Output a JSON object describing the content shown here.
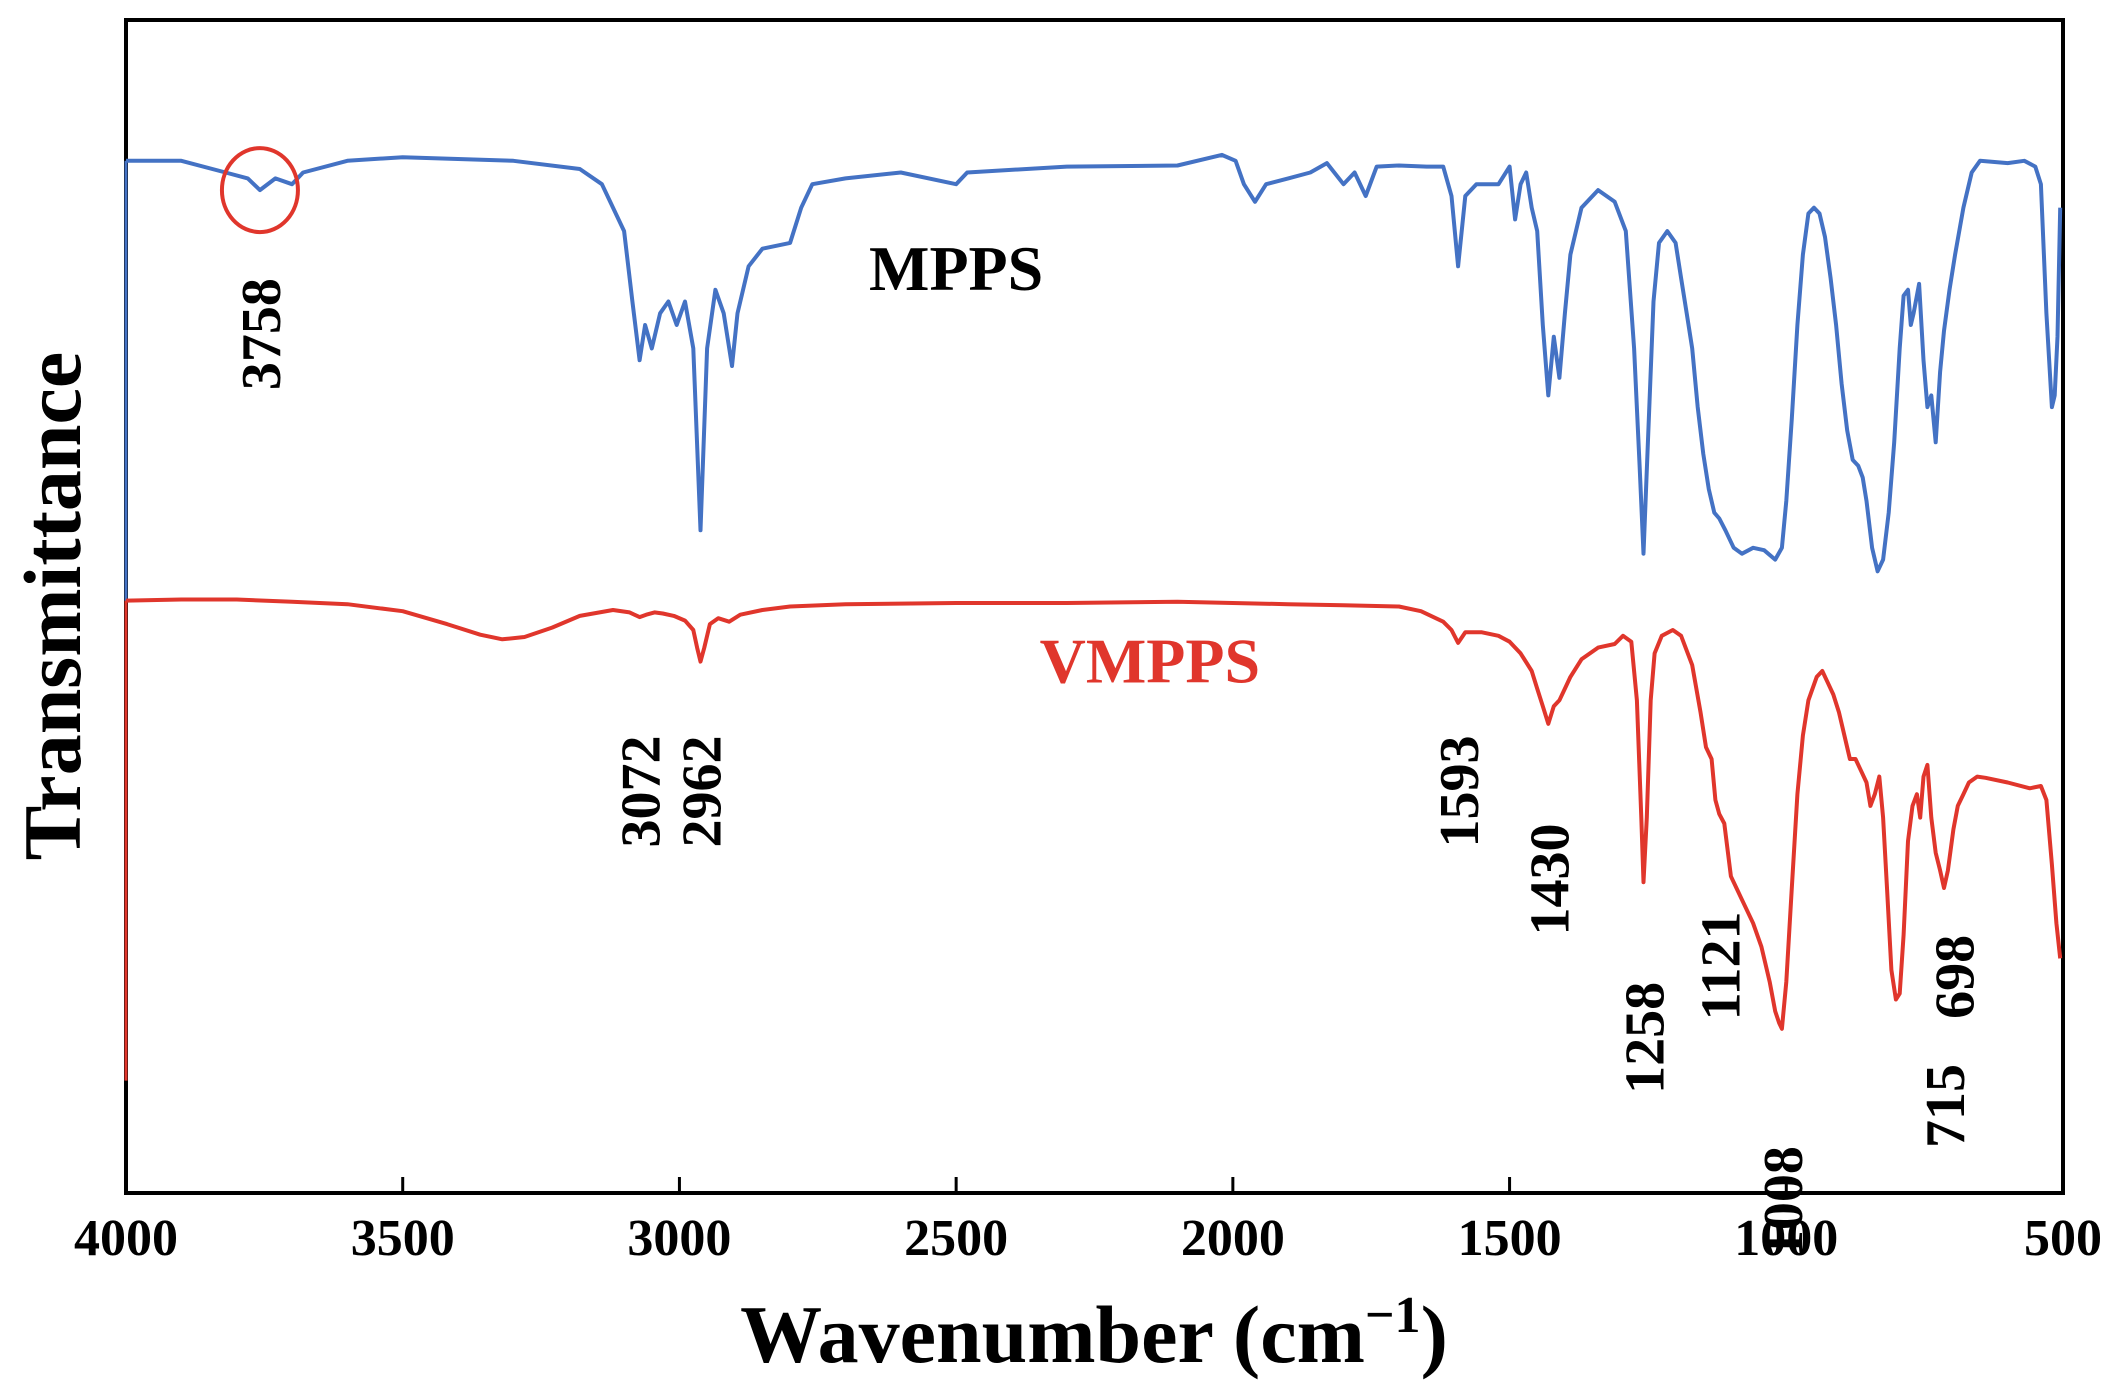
{
  "chart_data": {
    "type": "line",
    "xlabel": "Wavenumber (cm",
    "xlabel_sup": "−1",
    "xlabel_close": ")",
    "ylabel": "Transmittance",
    "xlim": [
      4000,
      500
    ],
    "x_reversed": true,
    "ylim": [
      0,
      100
    ],
    "xticks": [
      4000,
      3500,
      3000,
      2500,
      2000,
      1500,
      1000,
      500
    ],
    "yticks_shown": false,
    "grid": false,
    "series": [
      {
        "name": "MPPS",
        "color": "#4472c4",
        "label_position": "top-center",
        "points": [
          [
            4000,
            88
          ],
          [
            3900,
            88
          ],
          [
            3820,
            87
          ],
          [
            3780,
            86.5
          ],
          [
            3758,
            85.5
          ],
          [
            3730,
            86.5
          ],
          [
            3700,
            86
          ],
          [
            3680,
            87
          ],
          [
            3600,
            88
          ],
          [
            3500,
            88.3
          ],
          [
            3300,
            88
          ],
          [
            3180,
            87.3
          ],
          [
            3140,
            86
          ],
          [
            3100,
            82
          ],
          [
            3085,
            76
          ],
          [
            3072,
            71
          ],
          [
            3062,
            74
          ],
          [
            3050,
            72
          ],
          [
            3035,
            75
          ],
          [
            3020,
            76
          ],
          [
            3005,
            74
          ],
          [
            2990,
            76
          ],
          [
            2975,
            72
          ],
          [
            2962,
            56.5
          ],
          [
            2950,
            72
          ],
          [
            2935,
            77
          ],
          [
            2920,
            75
          ],
          [
            2905,
            70.5
          ],
          [
            2895,
            75
          ],
          [
            2875,
            79
          ],
          [
            2850,
            80.5
          ],
          [
            2800,
            81
          ],
          [
            2780,
            84
          ],
          [
            2760,
            86
          ],
          [
            2700,
            86.5
          ],
          [
            2600,
            87
          ],
          [
            2500,
            86
          ],
          [
            2480,
            87
          ],
          [
            2300,
            87.5
          ],
          [
            2100,
            87.6
          ],
          [
            2020,
            88.5
          ],
          [
            1995,
            88
          ],
          [
            1980,
            86
          ],
          [
            1960,
            84.5
          ],
          [
            1940,
            86
          ],
          [
            1900,
            86.5
          ],
          [
            1860,
            87
          ],
          [
            1830,
            87.8
          ],
          [
            1800,
            86
          ],
          [
            1780,
            87
          ],
          [
            1760,
            85
          ],
          [
            1740,
            87.5
          ],
          [
            1700,
            87.6
          ],
          [
            1650,
            87.5
          ],
          [
            1620,
            87.5
          ],
          [
            1605,
            85
          ],
          [
            1593,
            79
          ],
          [
            1580,
            85
          ],
          [
            1560,
            86
          ],
          [
            1520,
            86
          ],
          [
            1500,
            87.5
          ],
          [
            1490,
            83
          ],
          [
            1480,
            86
          ],
          [
            1470,
            87
          ],
          [
            1460,
            84
          ],
          [
            1450,
            82
          ],
          [
            1440,
            74
          ],
          [
            1430,
            68
          ],
          [
            1420,
            73
          ],
          [
            1410,
            69.5
          ],
          [
            1400,
            75
          ],
          [
            1390,
            80
          ],
          [
            1370,
            84
          ],
          [
            1340,
            85.5
          ],
          [
            1310,
            84.5
          ],
          [
            1290,
            82
          ],
          [
            1275,
            72
          ],
          [
            1265,
            62
          ],
          [
            1258,
            54.5
          ],
          [
            1250,
            64
          ],
          [
            1240,
            76
          ],
          [
            1230,
            81
          ],
          [
            1215,
            82
          ],
          [
            1200,
            81
          ],
          [
            1190,
            78
          ],
          [
            1180,
            75
          ],
          [
            1170,
            72
          ],
          [
            1160,
            67
          ],
          [
            1150,
            63
          ],
          [
            1140,
            60
          ],
          [
            1130,
            58
          ],
          [
            1121,
            57.5
          ],
          [
            1110,
            56.5
          ],
          [
            1095,
            55
          ],
          [
            1080,
            54.5
          ],
          [
            1060,
            55
          ],
          [
            1040,
            54.8
          ],
          [
            1020,
            54
          ],
          [
            1008,
            55
          ],
          [
            1000,
            59
          ],
          [
            990,
            66
          ],
          [
            980,
            74
          ],
          [
            970,
            80
          ],
          [
            960,
            83.5
          ],
          [
            950,
            84
          ],
          [
            940,
            83.5
          ],
          [
            930,
            81.5
          ],
          [
            920,
            78
          ],
          [
            910,
            74
          ],
          [
            900,
            69
          ],
          [
            890,
            65
          ],
          [
            880,
            62.5
          ],
          [
            870,
            62
          ],
          [
            862,
            61
          ],
          [
            855,
            59
          ],
          [
            845,
            55
          ],
          [
            835,
            53
          ],
          [
            825,
            54
          ],
          [
            815,
            58
          ],
          [
            805,
            64
          ],
          [
            795,
            72
          ],
          [
            788,
            76.5
          ],
          [
            780,
            77
          ],
          [
            775,
            74
          ],
          [
            770,
            75
          ],
          [
            760,
            77.5
          ],
          [
            752,
            71
          ],
          [
            745,
            67
          ],
          [
            738,
            68
          ],
          [
            730,
            64
          ],
          [
            722,
            70
          ],
          [
            715,
            73.5
          ],
          [
            705,
            77
          ],
          [
            695,
            80
          ],
          [
            680,
            84
          ],
          [
            665,
            87
          ],
          [
            650,
            88
          ],
          [
            600,
            87.8
          ],
          [
            570,
            88
          ],
          [
            550,
            87.5
          ],
          [
            540,
            86
          ],
          [
            530,
            75
          ],
          [
            520,
            67
          ],
          [
            515,
            68
          ],
          [
            510,
            73
          ],
          [
            505,
            84
          ]
        ]
      },
      {
        "name": "VMPPS",
        "color": "#e0362c",
        "label_position": "middle-center",
        "points": [
          [
            4000,
            50.5
          ],
          [
            3900,
            50.6
          ],
          [
            3800,
            50.6
          ],
          [
            3700,
            50.4
          ],
          [
            3600,
            50.2
          ],
          [
            3500,
            49.6
          ],
          [
            3420,
            48.5
          ],
          [
            3360,
            47.6
          ],
          [
            3320,
            47.2
          ],
          [
            3280,
            47.4
          ],
          [
            3230,
            48.2
          ],
          [
            3180,
            49.2
          ],
          [
            3120,
            49.7
          ],
          [
            3090,
            49.5
          ],
          [
            3072,
            49.1
          ],
          [
            3060,
            49.3
          ],
          [
            3045,
            49.5
          ],
          [
            3030,
            49.4
          ],
          [
            3010,
            49.2
          ],
          [
            2990,
            48.8
          ],
          [
            2975,
            48
          ],
          [
            2968,
            46.5
          ],
          [
            2962,
            45.3
          ],
          [
            2955,
            46.5
          ],
          [
            2945,
            48.5
          ],
          [
            2930,
            49
          ],
          [
            2910,
            48.7
          ],
          [
            2890,
            49.3
          ],
          [
            2850,
            49.7
          ],
          [
            2800,
            50
          ],
          [
            2700,
            50.2
          ],
          [
            2500,
            50.3
          ],
          [
            2300,
            50.3
          ],
          [
            2100,
            50.4
          ],
          [
            1900,
            50.2
          ],
          [
            1800,
            50.1
          ],
          [
            1700,
            50
          ],
          [
            1660,
            49.6
          ],
          [
            1620,
            48.7
          ],
          [
            1605,
            48
          ],
          [
            1593,
            46.9
          ],
          [
            1580,
            47.8
          ],
          [
            1550,
            47.8
          ],
          [
            1520,
            47.5
          ],
          [
            1500,
            47
          ],
          [
            1480,
            46
          ],
          [
            1460,
            44.5
          ],
          [
            1450,
            43
          ],
          [
            1440,
            41.5
          ],
          [
            1430,
            40
          ],
          [
            1420,
            41.5
          ],
          [
            1410,
            42
          ],
          [
            1400,
            43
          ],
          [
            1390,
            44
          ],
          [
            1370,
            45.5
          ],
          [
            1340,
            46.5
          ],
          [
            1310,
            46.8
          ],
          [
            1295,
            47.5
          ],
          [
            1280,
            47
          ],
          [
            1270,
            42
          ],
          [
            1262,
            32
          ],
          [
            1258,
            26.5
          ],
          [
            1252,
            32
          ],
          [
            1245,
            42
          ],
          [
            1238,
            46
          ],
          [
            1225,
            47.5
          ],
          [
            1205,
            48
          ],
          [
            1190,
            47.5
          ],
          [
            1170,
            45
          ],
          [
            1155,
            41
          ],
          [
            1145,
            38
          ],
          [
            1135,
            37
          ],
          [
            1128,
            33.5
          ],
          [
            1121,
            32.3
          ],
          [
            1112,
            31.5
          ],
          [
            1100,
            27
          ],
          [
            1080,
            25
          ],
          [
            1060,
            23
          ],
          [
            1045,
            21
          ],
          [
            1030,
            18
          ],
          [
            1020,
            15.5
          ],
          [
            1013,
            14.5
          ],
          [
            1008,
            14
          ],
          [
            1000,
            18
          ],
          [
            990,
            26
          ],
          [
            980,
            34
          ],
          [
            970,
            39
          ],
          [
            960,
            42
          ],
          [
            945,
            44
          ],
          [
            935,
            44.5
          ],
          [
            925,
            43.5
          ],
          [
            915,
            42.5
          ],
          [
            905,
            41
          ],
          [
            895,
            39
          ],
          [
            885,
            37
          ],
          [
            875,
            37
          ],
          [
            865,
            36
          ],
          [
            855,
            35
          ],
          [
            848,
            33
          ],
          [
            840,
            34
          ],
          [
            832,
            35.5
          ],
          [
            825,
            32
          ],
          [
            818,
            26
          ],
          [
            810,
            19
          ],
          [
            802,
            16.5
          ],
          [
            795,
            17
          ],
          [
            788,
            22
          ],
          [
            780,
            30
          ],
          [
            772,
            33
          ],
          [
            764,
            34
          ],
          [
            758,
            32
          ],
          [
            752,
            35.5
          ],
          [
            745,
            36.5
          ],
          [
            738,
            32
          ],
          [
            730,
            29
          ],
          [
            722,
            27.5
          ],
          [
            715,
            26
          ],
          [
            708,
            27.5
          ],
          [
            698,
            31
          ],
          [
            690,
            33
          ],
          [
            680,
            34
          ],
          [
            670,
            35
          ],
          [
            655,
            35.5
          ],
          [
            640,
            35.4
          ],
          [
            600,
            35
          ],
          [
            560,
            34.5
          ],
          [
            540,
            34.7
          ],
          [
            530,
            33.5
          ],
          [
            520,
            28
          ],
          [
            512,
            23
          ],
          [
            505,
            20
          ]
        ]
      }
    ],
    "annotations": [
      {
        "text": "3758",
        "x": 3758,
        "series": "MPPS",
        "label_y": 78
      },
      {
        "text": "3072",
        "x": 3072,
        "series": "VMPPS",
        "label_y": 39
      },
      {
        "text": "2962",
        "x": 2962,
        "series": "VMPPS",
        "label_y": 39
      },
      {
        "text": "1593",
        "x": 1593,
        "series": "VMPPS",
        "label_y": 39
      },
      {
        "text": "1430",
        "x": 1430,
        "series": "VMPPS",
        "label_y": 31.5
      },
      {
        "text": "1258",
        "x": 1258,
        "series": "VMPPS",
        "label_y": 18
      },
      {
        "text": "1121",
        "x": 1121,
        "series": "VMPPS",
        "label_y": 24
      },
      {
        "text": "1008",
        "x": 1008,
        "series": "VMPPS",
        "label_y": 4
      },
      {
        "text": "698",
        "x": 698,
        "series": "VMPPS",
        "label_y": 22
      },
      {
        "text": "715",
        "x": 715,
        "series": "VMPPS",
        "label_y": 11
      }
    ],
    "highlight_circle": {
      "x": 3758,
      "series": "MPPS",
      "color": "#e0362c"
    }
  }
}
